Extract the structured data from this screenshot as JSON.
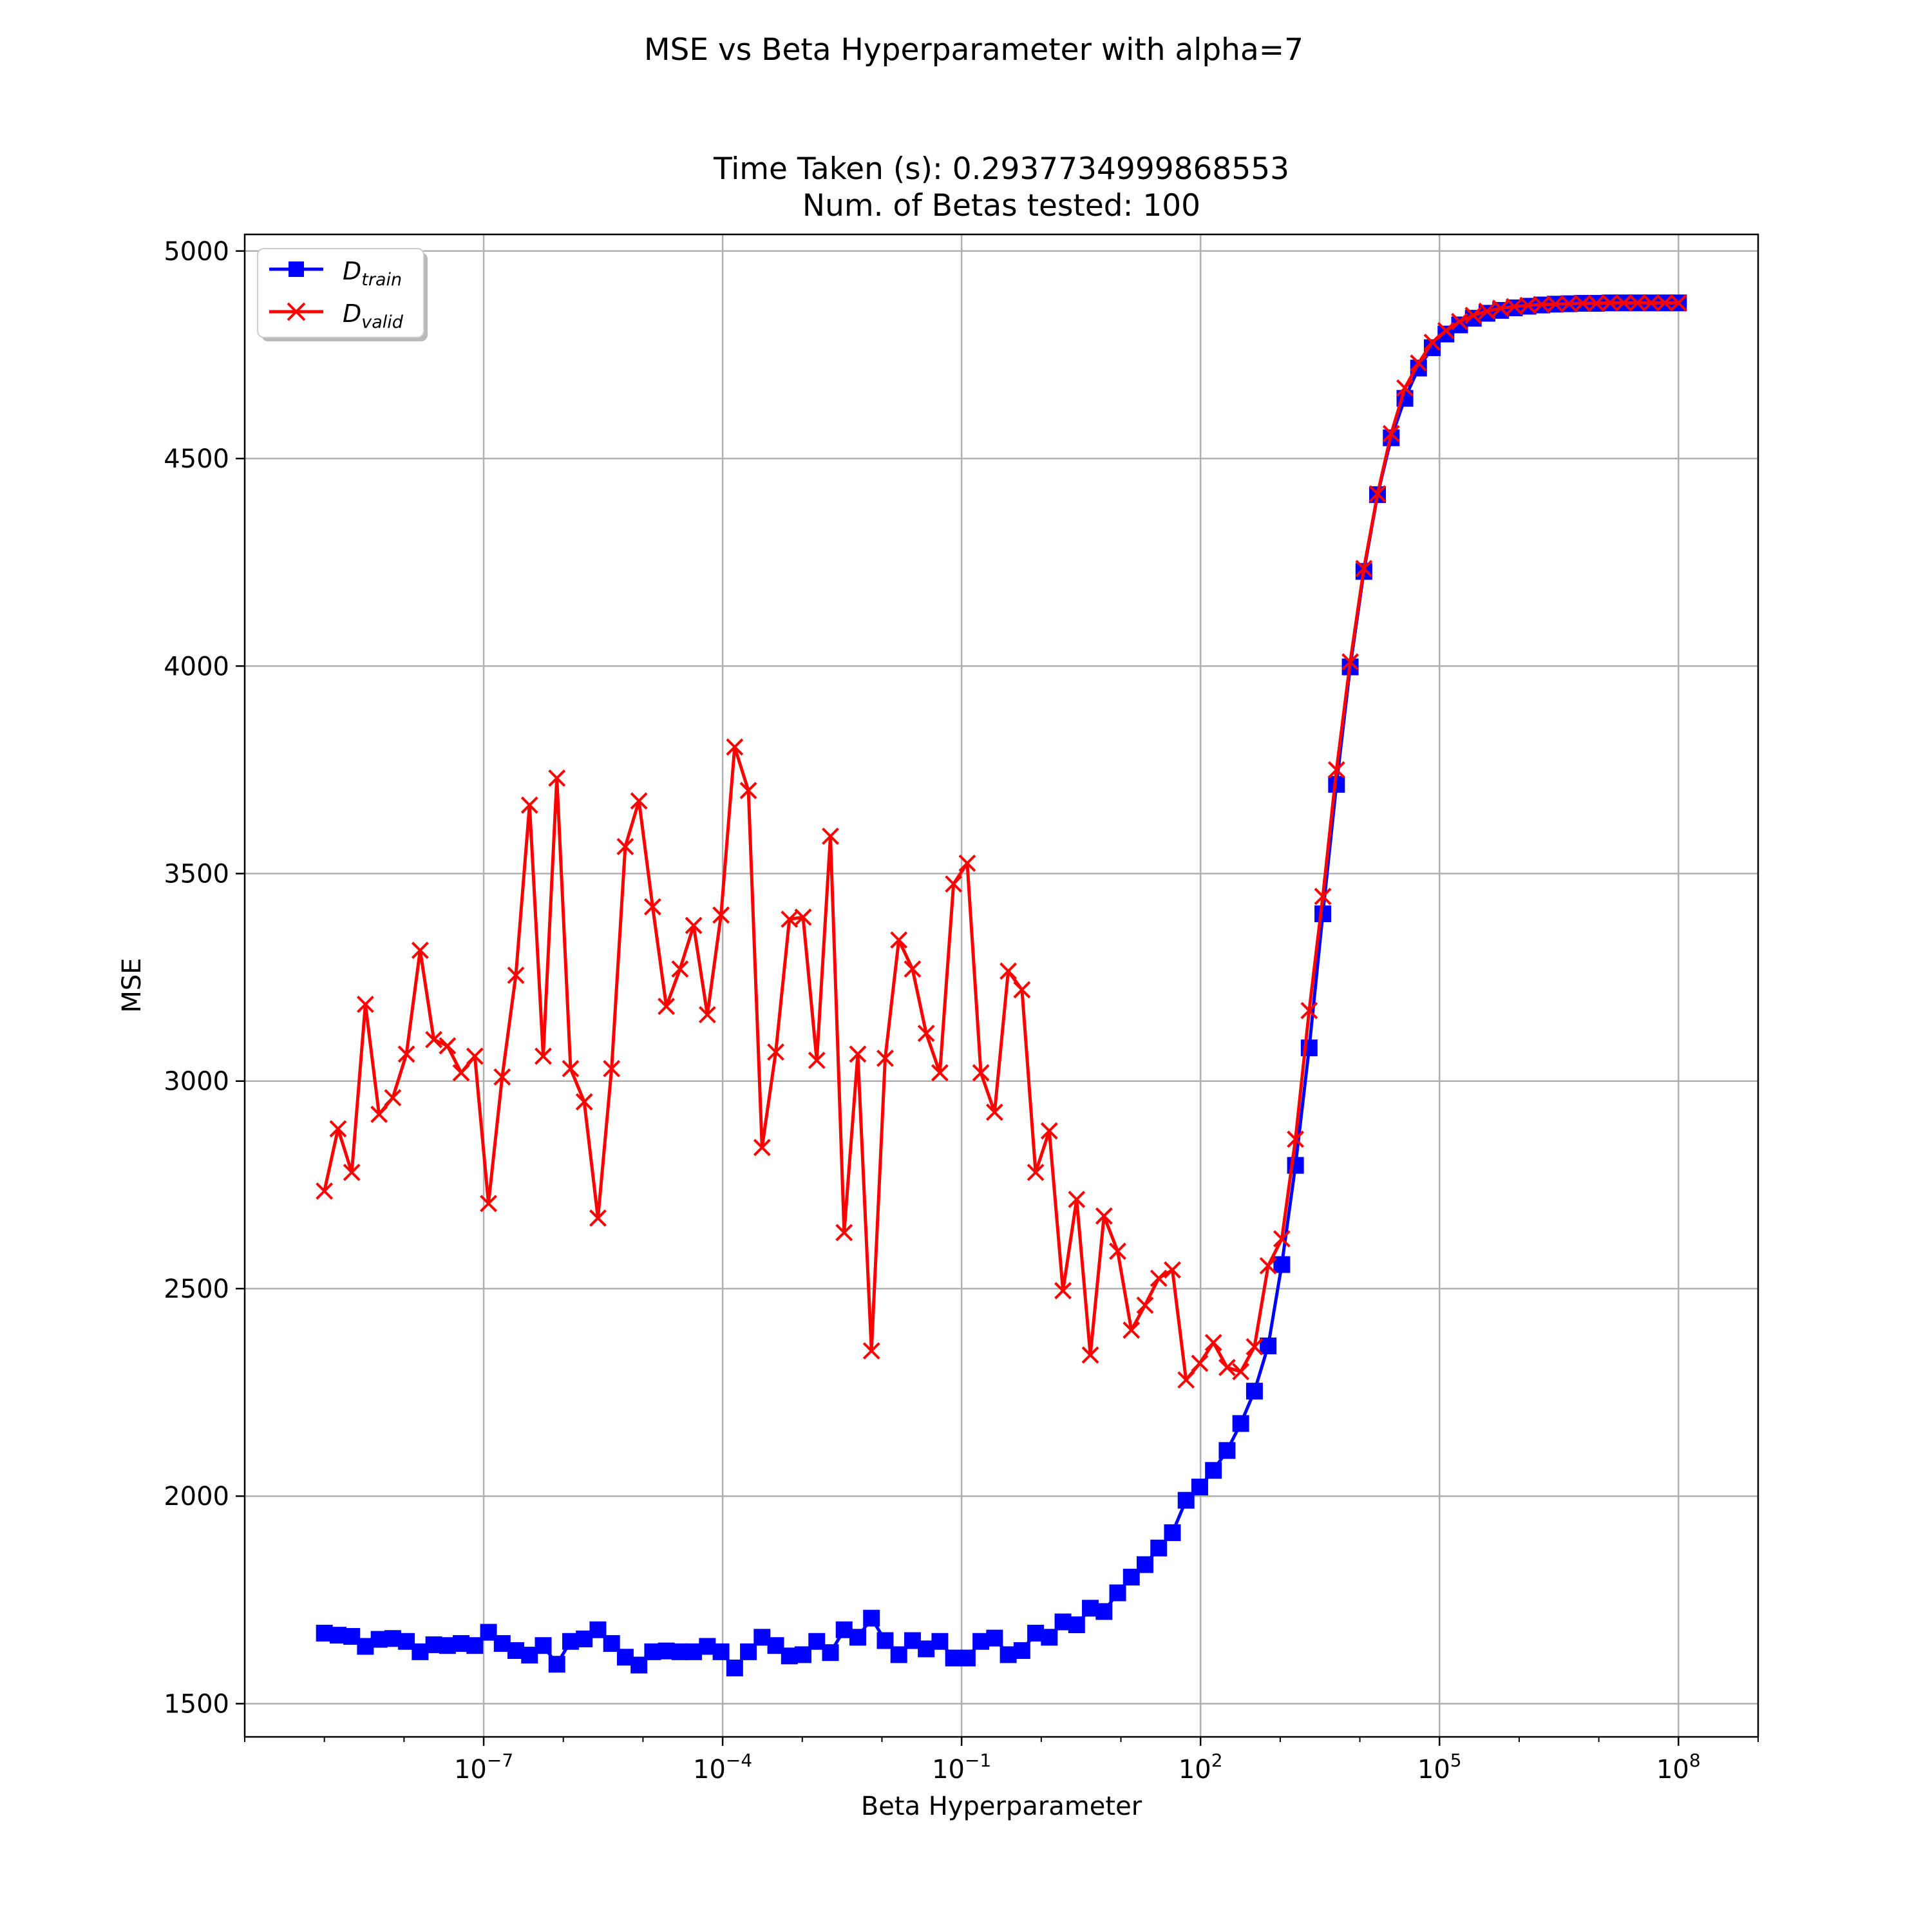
{
  "chart_data": {
    "type": "line",
    "suptitle": "MSE vs Beta Hyperparameter with alpha=7",
    "title_line1": "Time Taken (s): 0.2937734999868553",
    "title_line2": "Num. of Betas tested: 100",
    "xlabel": "Beta Hyperparameter",
    "ylabel": "MSE",
    "xscale": "log",
    "xlim": [
      1e-10,
      1000000000.0
    ],
    "ylim": [
      1420,
      5040
    ],
    "grid": true,
    "legend_position": "top-left",
    "x_tick_labels": [
      {
        "value": 1e-07,
        "base": "10",
        "exp": "−7"
      },
      {
        "value": 0.0001,
        "base": "10",
        "exp": "−4"
      },
      {
        "value": 0.1,
        "base": "10",
        "exp": "−1"
      },
      {
        "value": 100.0,
        "base": "10",
        "exp": "2"
      },
      {
        "value": 100000.0,
        "base": "10",
        "exp": "5"
      },
      {
        "value": 100000000.0,
        "base": "10",
        "exp": "8"
      }
    ],
    "y_ticks": [
      1500,
      2000,
      2500,
      3000,
      3500,
      4000,
      4500,
      5000
    ],
    "x_log10_range": [
      -9,
      8
    ],
    "num_points": 100,
    "series": [
      {
        "name": "train",
        "legend_main": "D",
        "legend_sub": "train",
        "color": "#0000ff",
        "marker": "square",
        "values": [
          1670,
          1665,
          1662,
          1638,
          1655,
          1657,
          1650,
          1625,
          1642,
          1640,
          1645,
          1640,
          1672,
          1645,
          1628,
          1617,
          1640,
          1595,
          1650,
          1656,
          1678,
          1645,
          1612,
          1593,
          1625,
          1627,
          1625,
          1625,
          1638,
          1625,
          1586,
          1625,
          1660,
          1640,
          1615,
          1618,
          1650,
          1623,
          1678,
          1660,
          1706,
          1652,
          1618,
          1652,
          1632,
          1650,
          1610,
          1610,
          1650,
          1658,
          1618,
          1628,
          1670,
          1660,
          1697,
          1690,
          1730,
          1722,
          1767,
          1805,
          1835,
          1875,
          1912,
          1990,
          2022,
          2062,
          2110,
          2175,
          2253,
          2362,
          2558,
          2797,
          3080,
          3403,
          3715,
          3998,
          4228,
          4413,
          4550,
          4645,
          4718,
          4767,
          4800,
          4822,
          4838,
          4850,
          4857,
          4863,
          4867,
          4870,
          4872,
          4873,
          4874,
          4874,
          4875,
          4875,
          4875,
          4875,
          4875,
          4875
        ]
      },
      {
        "name": "valid",
        "legend_main": "D",
        "legend_sub": "valid",
        "color": "#ff0000",
        "marker": "x",
        "values": [
          2735,
          2885,
          2780,
          3185,
          2920,
          2960,
          3065,
          3315,
          3100,
          3085,
          3020,
          3060,
          2705,
          3010,
          3255,
          3665,
          3060,
          3730,
          3030,
          2950,
          2670,
          3030,
          3565,
          3675,
          3420,
          3180,
          3270,
          3375,
          3160,
          3400,
          3805,
          3700,
          2840,
          3070,
          3390,
          3395,
          3050,
          3590,
          2635,
          3065,
          2350,
          3055,
          3340,
          3270,
          3115,
          3020,
          3475,
          3525,
          3020,
          2925,
          3265,
          3220,
          2780,
          2880,
          2495,
          2715,
          2340,
          2675,
          2590,
          2400,
          2460,
          2525,
          2545,
          2280,
          2320,
          2370,
          2310,
          2300,
          2360,
          2555,
          2620,
          2860,
          3170,
          3445,
          3750,
          4010,
          4235,
          4415,
          4560,
          4670,
          4730,
          4780,
          4808,
          4830,
          4845,
          4855,
          4862,
          4866,
          4869,
          4871,
          4872,
          4873,
          4874,
          4874,
          4875,
          4875,
          4875,
          4875,
          4875,
          4875
        ]
      }
    ]
  }
}
